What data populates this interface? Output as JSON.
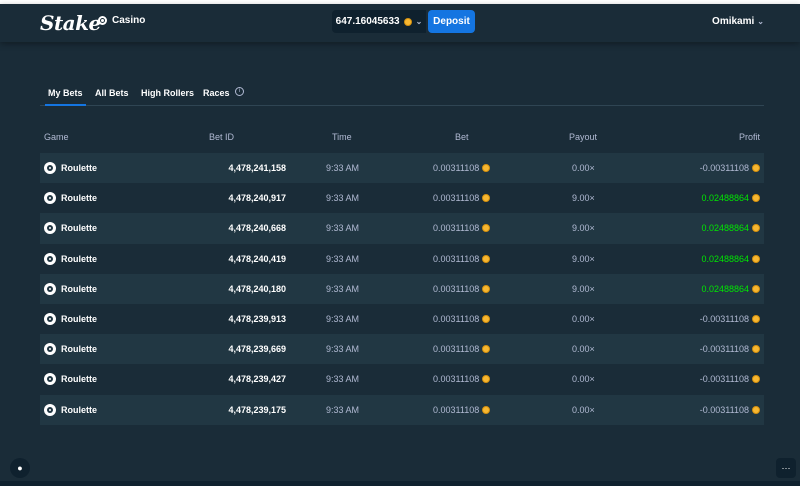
{
  "header": {
    "logo": "Stake",
    "nav_casino": "Casino",
    "balance": "647.16045633",
    "deposit_label": "Deposit",
    "username": "Omikami"
  },
  "tabs": [
    {
      "label": "My Bets",
      "active": true
    },
    {
      "label": "All Bets",
      "active": false
    },
    {
      "label": "High Rollers",
      "active": false
    },
    {
      "label": "Races",
      "active": false
    }
  ],
  "table": {
    "columns": {
      "game": "Game",
      "bet_id": "Bet ID",
      "time": "Time",
      "bet": "Bet",
      "payout": "Payout",
      "profit": "Profit"
    },
    "rows": [
      {
        "game": "Roulette",
        "bet_id": "4,478,241,158",
        "time": "9:33 AM",
        "bet": "0.00311108",
        "payout": "0.00×",
        "profit": "-0.00311108",
        "positive": false
      },
      {
        "game": "Roulette",
        "bet_id": "4,478,240,917",
        "time": "9:33 AM",
        "bet": "0.00311108",
        "payout": "9.00×",
        "profit": "0.02488864",
        "positive": true
      },
      {
        "game": "Roulette",
        "bet_id": "4,478,240,668",
        "time": "9:33 AM",
        "bet": "0.00311108",
        "payout": "9.00×",
        "profit": "0.02488864",
        "positive": true
      },
      {
        "game": "Roulette",
        "bet_id": "4,478,240,419",
        "time": "9:33 AM",
        "bet": "0.00311108",
        "payout": "9.00×",
        "profit": "0.02488864",
        "positive": true
      },
      {
        "game": "Roulette",
        "bet_id": "4,478,240,180",
        "time": "9:33 AM",
        "bet": "0.00311108",
        "payout": "9.00×",
        "profit": "0.02488864",
        "positive": true
      },
      {
        "game": "Roulette",
        "bet_id": "4,478,239,913",
        "time": "9:33 AM",
        "bet": "0.00311108",
        "payout": "0.00×",
        "profit": "-0.00311108",
        "positive": false
      },
      {
        "game": "Roulette",
        "bet_id": "4,478,239,669",
        "time": "9:33 AM",
        "bet": "0.00311108",
        "payout": "0.00×",
        "profit": "-0.00311108",
        "positive": false
      },
      {
        "game": "Roulette",
        "bet_id": "4,478,239,427",
        "time": "9:33 AM",
        "bet": "0.00311108",
        "payout": "0.00×",
        "profit": "-0.00311108",
        "positive": false
      },
      {
        "game": "Roulette",
        "bet_id": "4,478,239,175",
        "time": "9:33 AM",
        "bet": "0.00311108",
        "payout": "0.00×",
        "profit": "-0.00311108",
        "positive": false
      }
    ]
  },
  "icons": {
    "coin": "coin-icon",
    "game": "roulette-icon",
    "support": "headset-icon",
    "chat": "chat-icon",
    "info": "info-icon"
  },
  "colors": {
    "accent": "#1475e1",
    "positive": "#00e701",
    "muted": "#b1bad3",
    "background": "#1a2c38"
  }
}
